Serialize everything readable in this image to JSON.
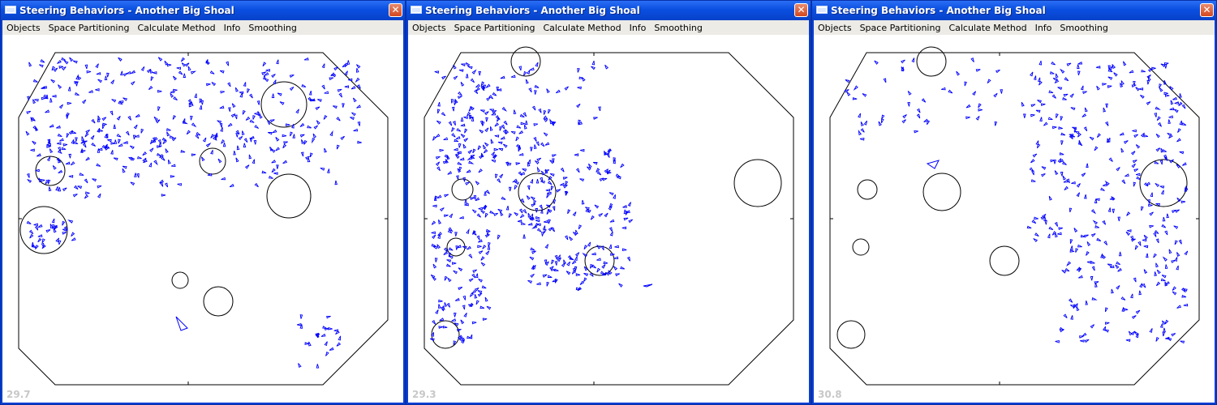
{
  "windows": [
    {
      "title": "Steering Behaviors - Another Big Shoal",
      "menu": [
        "Objects",
        "Space Partitioning",
        "Calculate Method",
        "Info",
        "Smoothing"
      ],
      "fps": "29.7"
    },
    {
      "title": "Steering Behaviors - Another Big Shoal",
      "menu": [
        "Objects",
        "Space Partitioning",
        "Calculate Method",
        "Info",
        "Smoothing"
      ],
      "fps": "29.3"
    },
    {
      "title": "Steering Behaviors - Another Big Shoal",
      "menu": [
        "Objects",
        "Space Partitioning",
        "Calculate Method",
        "Info",
        "Smoothing"
      ],
      "fps": "30.8"
    }
  ],
  "colors": {
    "agents": "#0000ff",
    "walls": "#000000",
    "titlebar": "#0a4fe0",
    "fps_text": "#c8c8c8"
  },
  "icons": {
    "close": "close-icon",
    "app": "app-icon"
  }
}
